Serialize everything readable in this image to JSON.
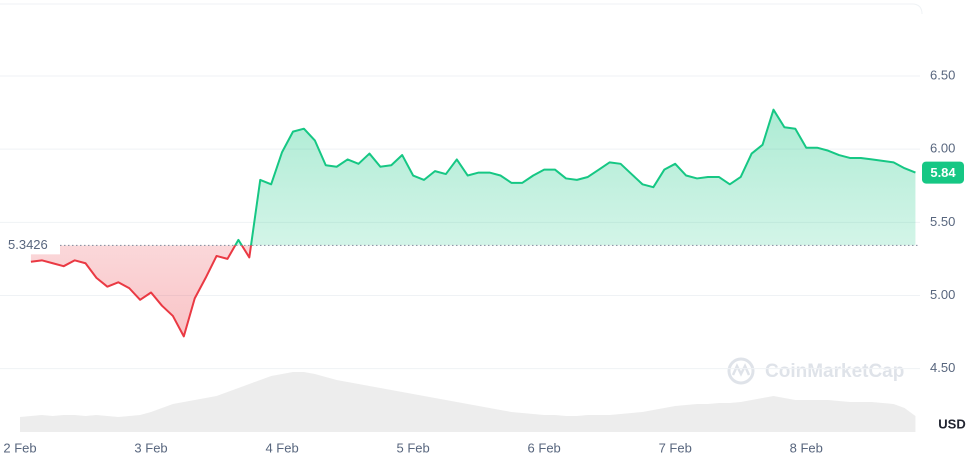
{
  "chart_data": {
    "type": "line",
    "watermark": "CoinMarketCap",
    "currency": "USD",
    "categories": [
      "2 Feb",
      null,
      null,
      null,
      null,
      null,
      null,
      null,
      null,
      null,
      null,
      null,
      "3 Feb",
      null,
      null,
      null,
      null,
      null,
      null,
      null,
      null,
      null,
      null,
      null,
      "4 Feb",
      null,
      null,
      null,
      null,
      null,
      null,
      null,
      null,
      null,
      null,
      null,
      "5 Feb",
      null,
      null,
      null,
      null,
      null,
      null,
      null,
      null,
      null,
      null,
      null,
      "6 Feb",
      null,
      null,
      null,
      null,
      null,
      null,
      null,
      null,
      null,
      null,
      null,
      "7 Feb",
      null,
      null,
      null,
      null,
      null,
      null,
      null,
      null,
      null,
      null,
      null,
      "8 Feb",
      null,
      null,
      null,
      null,
      null,
      null,
      null,
      null,
      null,
      null
    ],
    "series": [
      {
        "name": "Price",
        "color": "#16c784",
        "color_below": "#ea3943",
        "values": [
          null,
          5.23,
          5.24,
          5.22,
          5.2,
          5.24,
          5.22,
          5.12,
          5.06,
          5.09,
          5.05,
          4.97,
          5.02,
          4.93,
          4.86,
          4.72,
          4.98,
          5.12,
          5.27,
          5.25,
          5.38,
          5.26,
          5.79,
          5.76,
          5.98,
          6.12,
          6.14,
          6.06,
          5.89,
          5.88,
          5.93,
          5.9,
          5.97,
          5.88,
          5.89,
          5.96,
          5.82,
          5.79,
          5.85,
          5.83,
          5.93,
          5.82,
          5.84,
          5.84,
          5.82,
          5.77,
          5.77,
          5.82,
          5.86,
          5.86,
          5.8,
          5.79,
          5.81,
          5.86,
          5.91,
          5.9,
          5.83,
          5.76,
          5.74,
          5.86,
          5.9,
          5.82,
          5.8,
          5.81,
          5.81,
          5.76,
          5.81,
          5.97,
          6.03,
          6.27,
          6.15,
          6.14,
          6.01,
          6.01,
          5.99,
          5.96,
          5.94,
          5.94,
          5.93,
          5.92,
          5.91,
          5.87,
          5.84
        ]
      },
      {
        "name": "Volume",
        "color": "#e6e6e6",
        "axis": "y2",
        "values": [
          15,
          16,
          17,
          16,
          17,
          17,
          16,
          17,
          16,
          15,
          16,
          17,
          20,
          24,
          28,
          30,
          32,
          34,
          36,
          40,
          44,
          48,
          52,
          56,
          58,
          60,
          60,
          58,
          55,
          52,
          50,
          48,
          46,
          44,
          42,
          40,
          38,
          36,
          34,
          32,
          30,
          28,
          26,
          24,
          22,
          20,
          19,
          18,
          17,
          17,
          16,
          16,
          17,
          17,
          17,
          18,
          19,
          20,
          22,
          24,
          26,
          27,
          28,
          28,
          29,
          29,
          30,
          32,
          34,
          36,
          34,
          32,
          32,
          32,
          32,
          31,
          30,
          30,
          30,
          29,
          28,
          24,
          16
        ]
      }
    ],
    "baseline": 5.3426,
    "last_price": 5.84,
    "ylim": [
      4.08,
      7.02
    ],
    "yticks": [
      {
        "value": 4.5,
        "label": "4.50"
      },
      {
        "value": 5,
        "label": "5.00"
      },
      {
        "value": 5.5,
        "label": "5.50"
      },
      {
        "value": 6,
        "label": "6.00"
      },
      {
        "value": 6.5,
        "label": "6.50"
      }
    ],
    "y2lim": [
      0,
      100
    ],
    "grid": true
  }
}
